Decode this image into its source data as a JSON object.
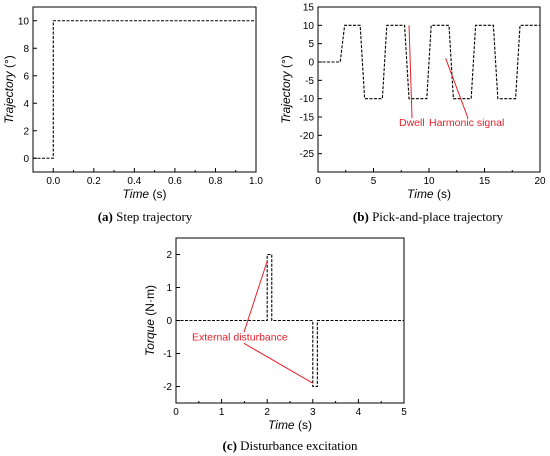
{
  "chart_data": [
    {
      "type": "line",
      "id": "a",
      "caption_letter": "(a)",
      "caption_text": " Step trajectory",
      "xlabel_name": "Time",
      "xlabel_unit": " (s)",
      "ylabel_name": "Trajectory",
      "ylabel_unit": " (°)",
      "xlim": [
        -0.1,
        1.0
      ],
      "ylim": [
        -1,
        11
      ],
      "xticks": [
        0.0,
        0.2,
        0.4,
        0.6,
        0.8,
        1.0
      ],
      "xtick_labels": [
        "0.0",
        "0.2",
        "0.4",
        "0.6",
        "0.8",
        "1.0"
      ],
      "xticks_minor": [
        -0.1,
        0.1,
        0.3,
        0.5,
        0.7,
        0.9
      ],
      "yticks": [
        0,
        2,
        4,
        6,
        8,
        10
      ],
      "ytick_labels": [
        "0",
        "2",
        "4",
        "6",
        "8",
        "10"
      ],
      "line_style": "dashed",
      "series": [
        {
          "x": [
            -0.1,
            0.0,
            0.0,
            1.0
          ],
          "y": [
            0,
            0,
            10,
            10
          ]
        }
      ],
      "annotations": []
    },
    {
      "type": "line",
      "id": "b",
      "caption_letter": "(b)",
      "caption_text": " Pick-and-place trajectory",
      "xlabel_name": "Time",
      "xlabel_unit": " (s)",
      "ylabel_name": "Trajectory",
      "ylabel_unit": " (°)",
      "xlim": [
        0,
        20
      ],
      "ylim": [
        -30,
        15
      ],
      "xticks": [
        0,
        5,
        10,
        15,
        20
      ],
      "xtick_labels": [
        "0",
        "5",
        "10",
        "15",
        "20"
      ],
      "xticks_minor": [
        2.5,
        7.5,
        12.5,
        17.5
      ],
      "yticks": [
        -25,
        -20,
        -15,
        -10,
        -5,
        0,
        5,
        10,
        15
      ],
      "ytick_labels": [
        "-25",
        "-20",
        "-15",
        "-10",
        "-5",
        "0",
        "5",
        "10",
        "15"
      ],
      "line_style": "dashed",
      "series": [
        {
          "x": [
            0,
            2,
            2.4,
            3.8,
            4.2,
            5.8,
            6.2,
            7.8,
            8.2,
            9.8,
            10.2,
            11.8,
            12.2,
            13.8,
            14.2,
            15.8,
            16.2,
            17.8,
            18.2,
            20
          ],
          "y": [
            0,
            0,
            10,
            10,
            -10,
            -10,
            10,
            10,
            -10,
            -10,
            10,
            10,
            -10,
            -10,
            10,
            10,
            -10,
            -10,
            10,
            10
          ]
        }
      ],
      "annotations": [
        {
          "text": "Dwell",
          "text_at": [
            7.3,
            -17.5
          ],
          "point_to": [
            8.2,
            10
          ]
        },
        {
          "text": "Harmonic signal",
          "text_at": [
            10.0,
            -17.5
          ],
          "point_to": [
            11.5,
            1
          ]
        }
      ]
    },
    {
      "type": "line",
      "id": "c",
      "caption_letter": "(c)",
      "caption_text": " Disturbance excitation",
      "xlabel_name": "Time",
      "xlabel_unit": " (s)",
      "ylabel_name": "Torque",
      "ylabel_unit": " (N·m)",
      "xlim": [
        0,
        5
      ],
      "ylim": [
        -2.5,
        2.5
      ],
      "xticks": [
        0,
        1,
        2,
        3,
        4,
        5
      ],
      "xtick_labels": [
        "0",
        "1",
        "2",
        "3",
        "4",
        "5"
      ],
      "xticks_minor": [
        0.5,
        1.5,
        2.5,
        3.5,
        4.5
      ],
      "yticks": [
        -2,
        -1,
        0,
        1,
        2
      ],
      "ytick_labels": [
        "-2",
        "-1",
        "0",
        "1",
        "2"
      ],
      "line_style": "dashed",
      "series": [
        {
          "x": [
            0,
            2.0,
            2.0,
            2.1,
            2.1,
            3.0,
            3.0,
            3.1,
            3.1,
            5
          ],
          "y": [
            0,
            0,
            2,
            2,
            0,
            0,
            -2,
            -2,
            0,
            0
          ]
        }
      ],
      "annotations": [
        {
          "text": "External disturbance",
          "text_at": [
            0.35,
            -0.6
          ],
          "point_to": [
            2.0,
            1.8
          ]
        },
        {
          "text": "External disturbance",
          "text_at": [
            0.35,
            -0.6
          ],
          "point_to": [
            3.0,
            -1.9
          ]
        }
      ]
    }
  ]
}
